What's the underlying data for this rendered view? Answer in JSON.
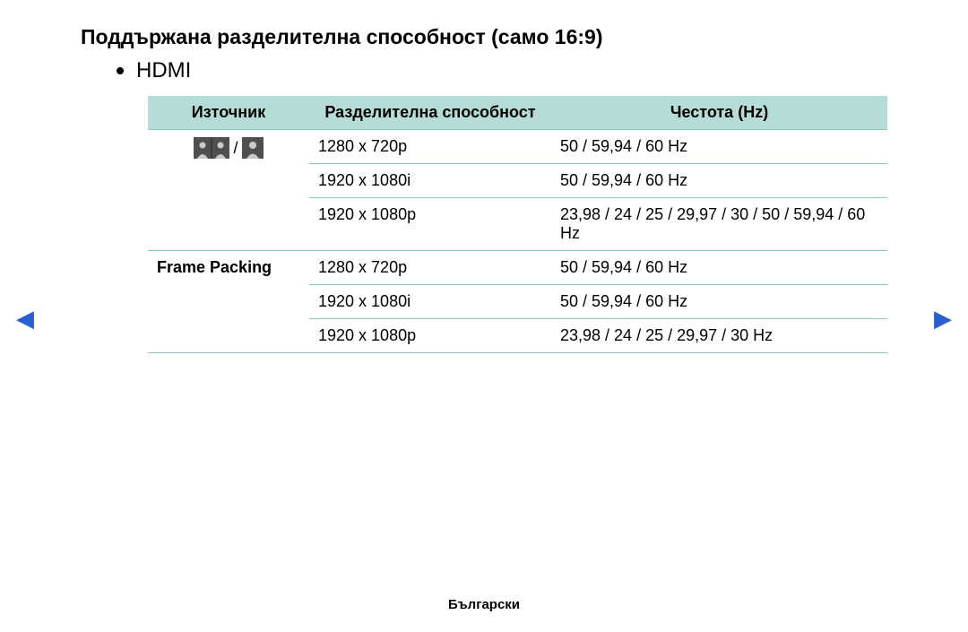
{
  "colors": {
    "header_bg": "#b5dcd7",
    "border": "#84c7c0",
    "arrow": "#2a5fd0",
    "icon_bg": "#4f4f4f",
    "icon_fg": "#c9c9c9"
  },
  "title": "Поддържана разделителна способност (само 16:9)",
  "bullet": "HDMI",
  "table": {
    "headers": {
      "source": "Източник",
      "resolution": "Разделителна способност",
      "frequency": "Честота (Hz)"
    },
    "groups": [
      {
        "source_type": "icons",
        "label": "",
        "rows": [
          {
            "resolution": "1280 x 720p",
            "frequency": "50 / 59,94 / 60 Hz"
          },
          {
            "resolution": "1920 x 1080i",
            "frequency": "50 / 59,94 / 60 Hz"
          },
          {
            "resolution": "1920 x 1080p",
            "frequency": "23,98 / 24 / 25 / 29,97 / 30 / 50 / 59,94 / 60 Hz"
          }
        ]
      },
      {
        "source_type": "text",
        "label": "Frame Packing",
        "rows": [
          {
            "resolution": "1280 x 720p",
            "frequency": "50 / 59,94 / 60 Hz"
          },
          {
            "resolution": "1920 x 1080i",
            "frequency": "50 / 59,94 / 60 Hz"
          },
          {
            "resolution": "1920 x 1080p",
            "frequency": "23,98 / 24 / 25 / 29,97 / 30 Hz"
          }
        ]
      }
    ]
  },
  "icon_separator": "/",
  "footer": "Български",
  "nav": {
    "prev": "◀",
    "next": "▶"
  }
}
